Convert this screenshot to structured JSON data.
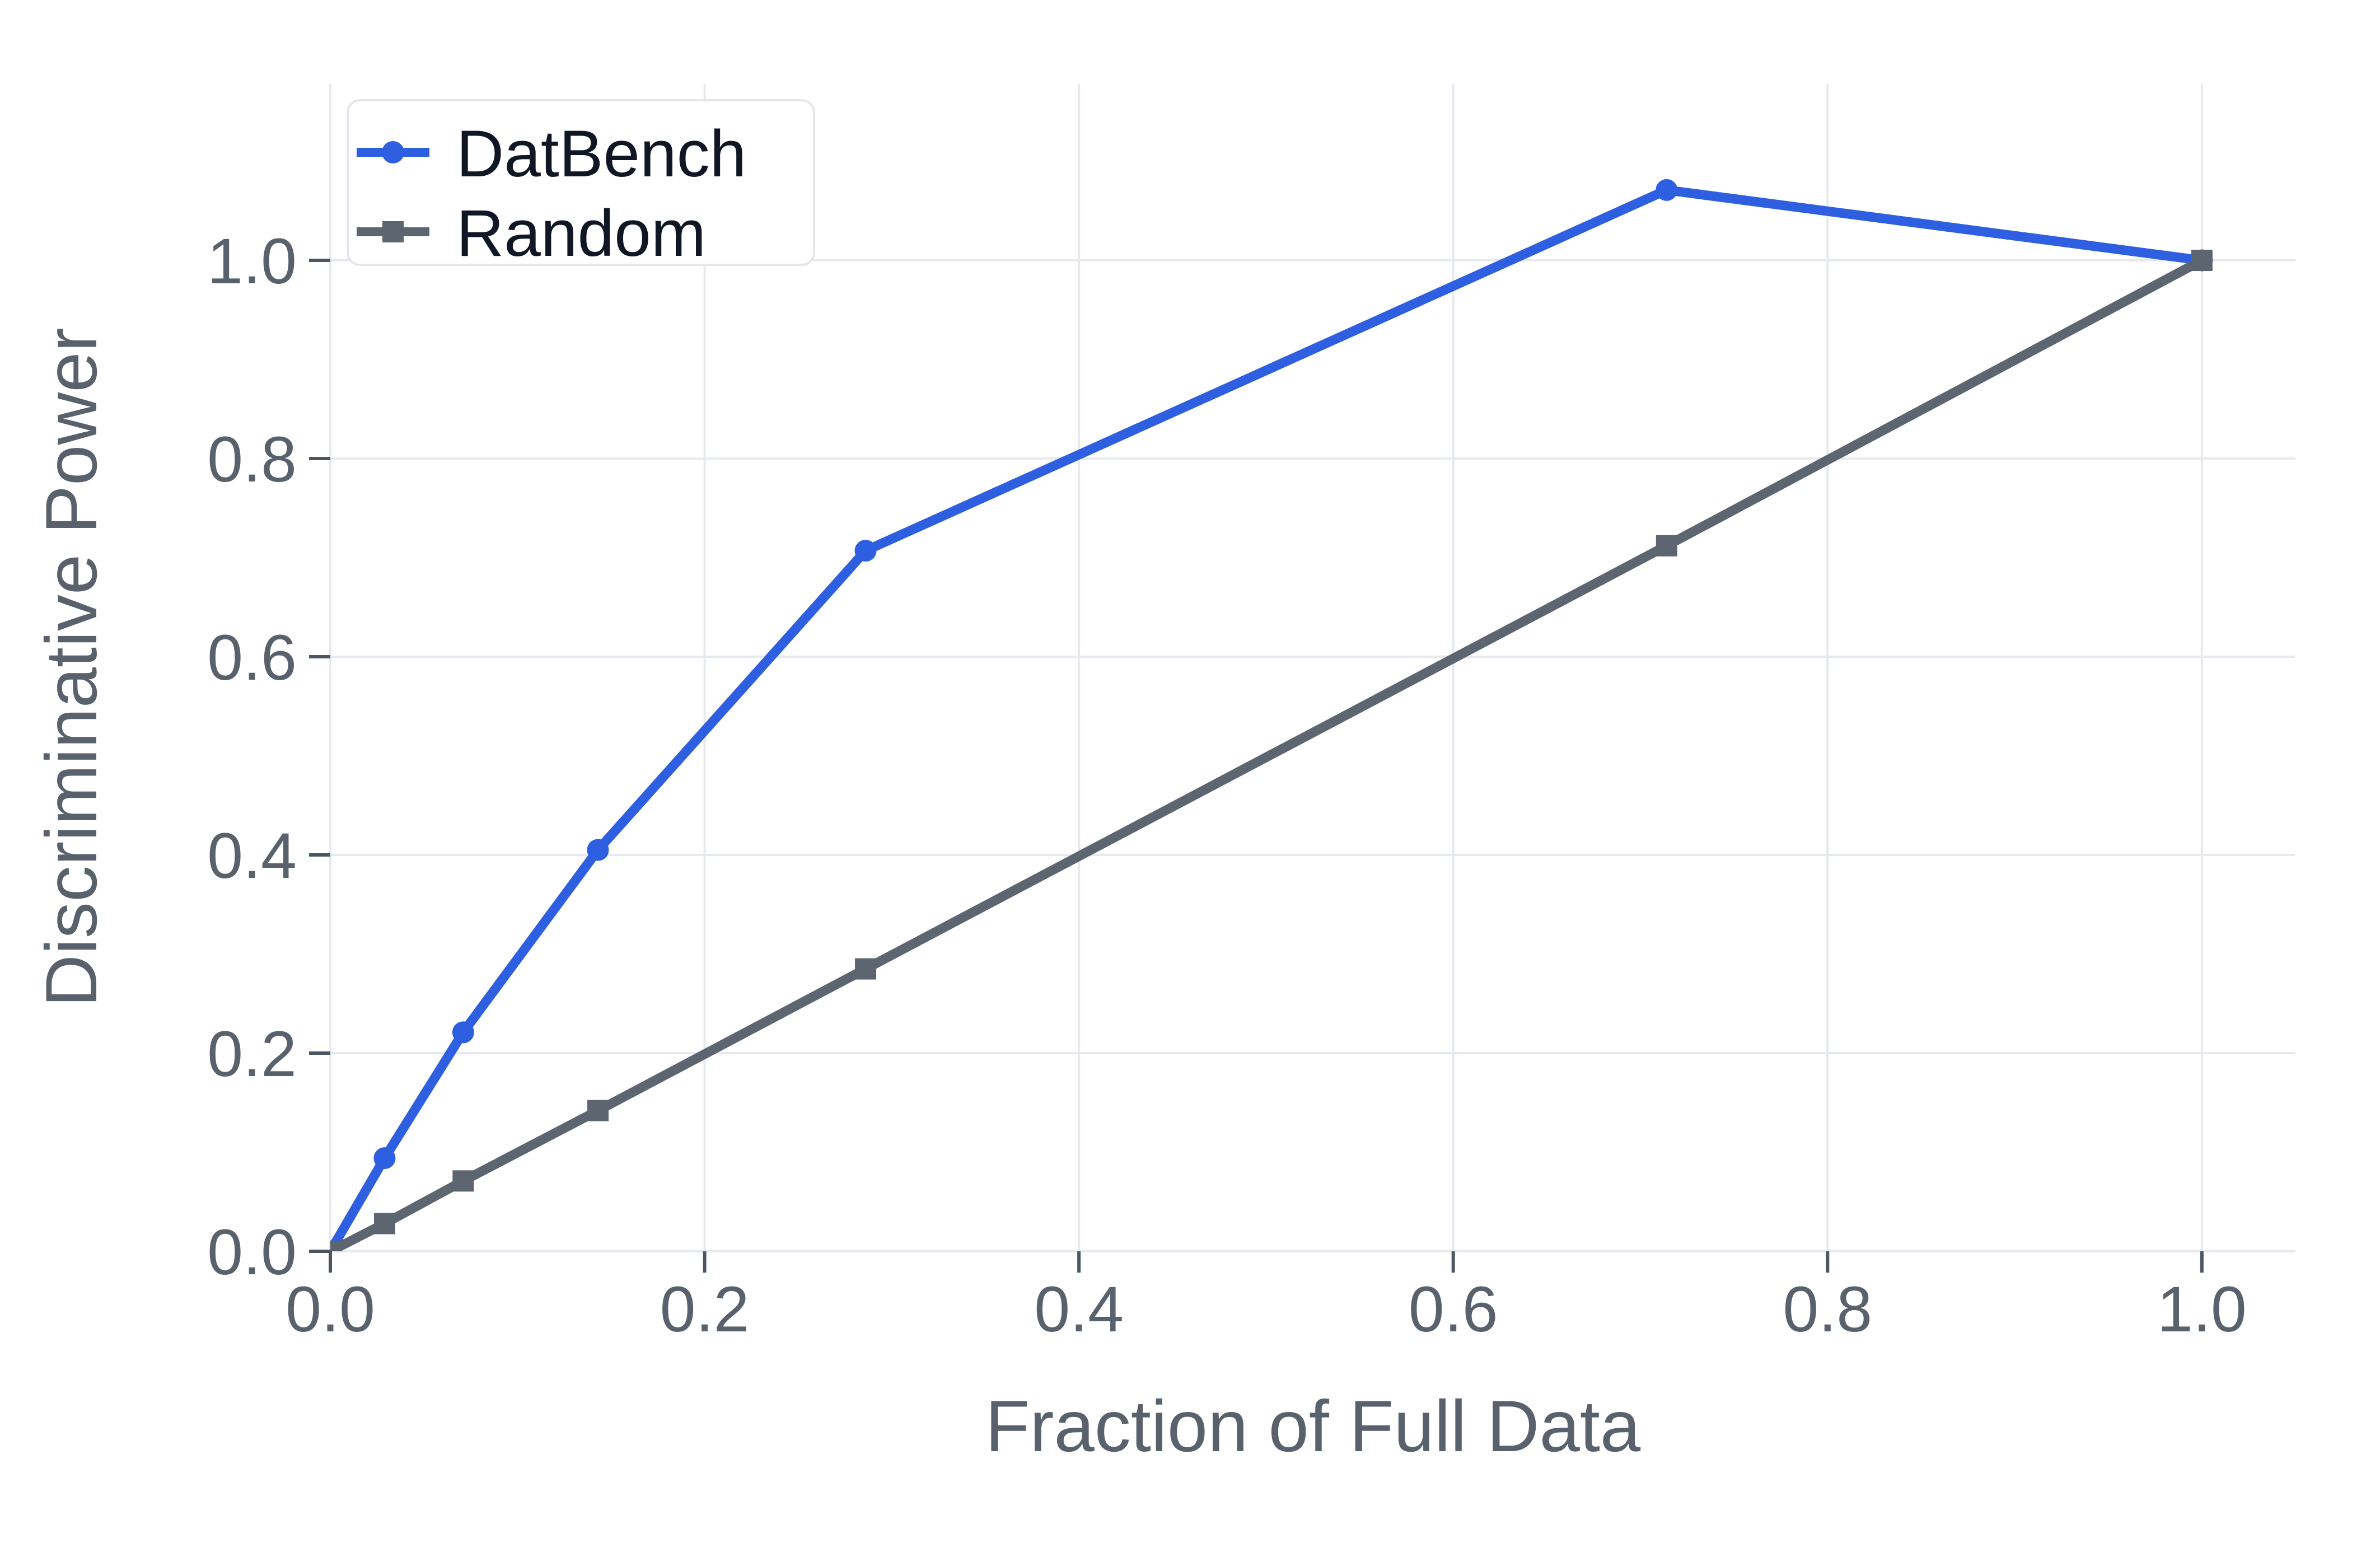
{
  "chart_data": {
    "type": "line",
    "title": "",
    "xlabel": "Fraction of Full Data",
    "ylabel": "Discriminative Power",
    "xlim": [
      0,
      1.05
    ],
    "ylim": [
      0,
      1.178
    ],
    "grid": true,
    "legend_position": "upper left",
    "xticks": {
      "values": [
        0.0,
        0.2,
        0.4,
        0.6,
        0.8,
        1.0
      ],
      "labels": [
        "0.0",
        "0.2",
        "0.4",
        "0.6",
        "0.8",
        "1.0"
      ]
    },
    "yticks": {
      "values": [
        0.0,
        0.2,
        0.4,
        0.6,
        0.8,
        1.0
      ],
      "labels": [
        "0.0",
        "0.2",
        "0.4",
        "0.6",
        "0.8",
        "1.0"
      ]
    },
    "x": [
      0.0,
      0.029,
      0.071,
      0.143,
      0.286,
      0.714,
      1.0
    ],
    "series": [
      {
        "name": "DatBench",
        "marker": "circle",
        "color": "#2e5fe1",
        "values": [
          0.0,
          0.094,
          0.221,
          0.405,
          0.707,
          1.071,
          1.0
        ]
      },
      {
        "name": "Random",
        "marker": "square",
        "color": "#5c6570",
        "values": [
          0.0,
          0.028,
          0.071,
          0.142,
          0.285,
          0.712,
          1.0
        ]
      }
    ],
    "legend": {
      "entries": [
        {
          "label": "DatBench",
          "color": "#2e5fe1",
          "marker": "circle"
        },
        {
          "label": "Random",
          "color": "#5c6570",
          "marker": "square"
        }
      ]
    },
    "colors": {
      "datbench_blue": "#2e5fe1",
      "random_gray": "#5c6570",
      "grid": "#e6e9ef",
      "tick": "#4d5562",
      "tick_label": "#59616d",
      "axis_title": "#59616d",
      "legend_text": "#101624",
      "legend_border": "#e3e7ec",
      "background": "#ffffff"
    }
  }
}
